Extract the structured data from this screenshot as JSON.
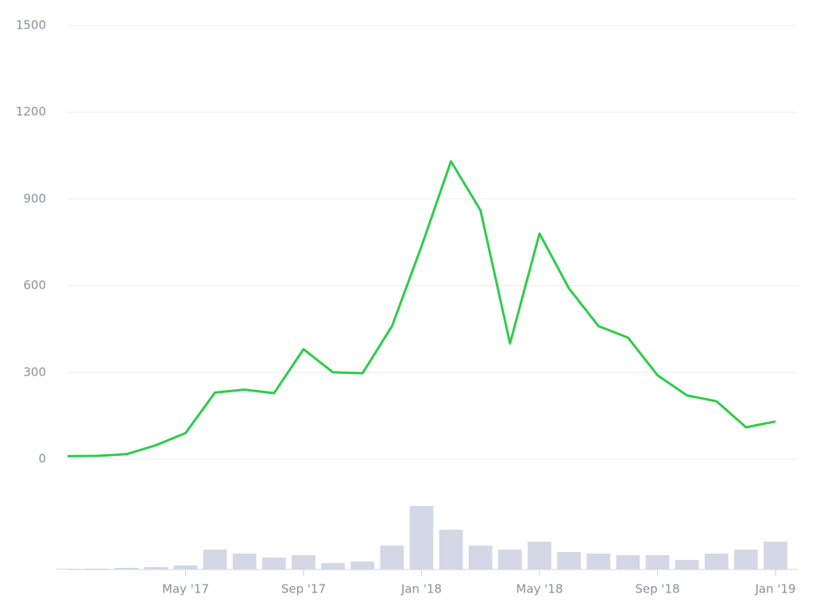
{
  "chart_data": {
    "type": "line",
    "x": [
      "2017-01",
      "2017-02",
      "2017-03",
      "2017-04",
      "2017-05",
      "2017-06",
      "2017-07",
      "2017-08",
      "2017-09",
      "2017-10",
      "2017-11",
      "2017-12",
      "2018-01",
      "2018-02",
      "2018-03",
      "2018-04",
      "2018-05",
      "2018-06",
      "2018-07",
      "2018-08",
      "2018-09",
      "2018-10",
      "2018-11",
      "2018-12",
      "2019-01"
    ],
    "series": [
      {
        "color": "#2ecc4a",
        "values": [
          10,
          11,
          17,
          48,
          90,
          230,
          240,
          228,
          380,
          300,
          297,
          460,
          736,
          1030,
          860,
          400,
          780,
          590,
          460,
          420,
          290,
          220,
          200,
          110,
          130
        ]
      }
    ],
    "volume": {
      "color": "#d3d7e6",
      "values": [
        1,
        1,
        2,
        3,
        5,
        25,
        20,
        15,
        18,
        8,
        10,
        30,
        80,
        50,
        30,
        25,
        35,
        22,
        20,
        18,
        18,
        12,
        20,
        25,
        35
      ],
      "lim": [
        0,
        110
      ]
    },
    "xlim": [
      "2017-01",
      "2019-01"
    ],
    "xticks": [
      {
        "value": "2017-05",
        "label": "May '17"
      },
      {
        "value": "2017-09",
        "label": "Sep '17"
      },
      {
        "value": "2018-01",
        "label": "Jan '18"
      },
      {
        "value": "2018-05",
        "label": "May '18"
      },
      {
        "value": "2018-09",
        "label": "Sep '18"
      },
      {
        "value": "2019-01",
        "label": "Jan '19"
      }
    ],
    "ylim": [
      0,
      1500
    ],
    "yticks": [
      0,
      300,
      600,
      900,
      1200,
      1500
    ],
    "grid": true
  }
}
